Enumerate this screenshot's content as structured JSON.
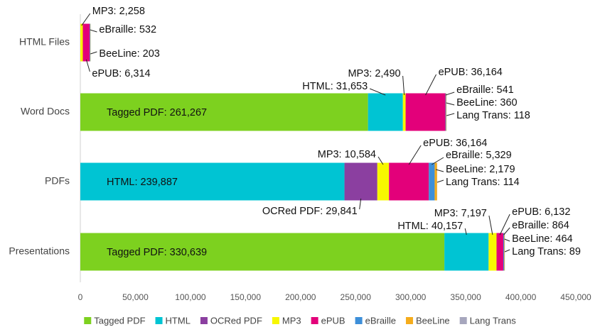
{
  "chart_data": {
    "type": "stacked-bar",
    "orientation": "horizontal",
    "categories": [
      "HTML Files",
      "Word Docs",
      "PDFs",
      "Presentations"
    ],
    "series": [
      {
        "name": "Tagged PDF",
        "color": "#7dd11f",
        "values": [
          null,
          261267,
          null,
          330639
        ],
        "value_labels": [
          null,
          "Tagged PDF: 261,267",
          null,
          "Tagged PDF: 330,639"
        ]
      },
      {
        "name": "HTML",
        "color": "#00c4d3",
        "values": [
          null,
          31653,
          239887,
          40157
        ],
        "value_labels": [
          null,
          "HTML: 31,653",
          "HTML: 239,887",
          "HTML: 40,157"
        ]
      },
      {
        "name": "OCRed PDF",
        "color": "#8b3fa0",
        "values": [
          null,
          null,
          29841,
          null
        ],
        "value_labels": [
          null,
          null,
          "OCRed PDF: 29,841",
          null
        ]
      },
      {
        "name": "MP3",
        "color": "#f7f700",
        "values": [
          2258,
          2490,
          10584,
          7197
        ],
        "value_labels": [
          "MP3: 2,258",
          "MP3: 2,490",
          "MP3: 10,584",
          "MP3: 7,197"
        ]
      },
      {
        "name": "ePUB",
        "color": "#e3007a",
        "values": [
          6314,
          36164,
          36164,
          6132
        ],
        "value_labels": [
          "ePUB: 6,314",
          "ePUB: 36,164",
          "ePUB: 36,164",
          "ePUB: 6,132"
        ]
      },
      {
        "name": "eBraille",
        "color": "#3d8fd9",
        "values": [
          532,
          541,
          5329,
          864
        ],
        "value_labels": [
          "eBraille: 532",
          "eBraille: 541",
          "eBraille: 5,329",
          "eBraille: 864"
        ]
      },
      {
        "name": "BeeLine",
        "color": "#f5ac1c",
        "values": [
          203,
          360,
          2179,
          464
        ],
        "value_labels": [
          "BeeLine: 203",
          "BeeLine: 360",
          "BeeLine: 2,179",
          "BeeLine: 464"
        ]
      },
      {
        "name": "Lang Trans",
        "color": "#a6a6bd",
        "values": [
          null,
          118,
          114,
          89
        ],
        "value_labels": [
          null,
          "Lang Trans: 118",
          "Lang Trans: 114",
          "Lang Trans: 89"
        ]
      }
    ],
    "xlim": [
      0,
      450000
    ],
    "xticks": [
      0,
      {
        "value": 50000,
        "label": "50,000"
      },
      {
        "value": 100000,
        "label": "100,000"
      },
      {
        "value": 150000,
        "label": "150,000"
      },
      {
        "value": 200000,
        "label": "200,000"
      },
      {
        "value": 250000,
        "label": "250,000"
      },
      {
        "value": 300000,
        "label": "300,000"
      },
      {
        "value": 350000,
        "label": "350,000"
      },
      {
        "value": 400000,
        "label": "400,000"
      },
      {
        "value": 450000,
        "label": "450,000"
      }
    ],
    "grid": false,
    "legend": "bottom"
  }
}
